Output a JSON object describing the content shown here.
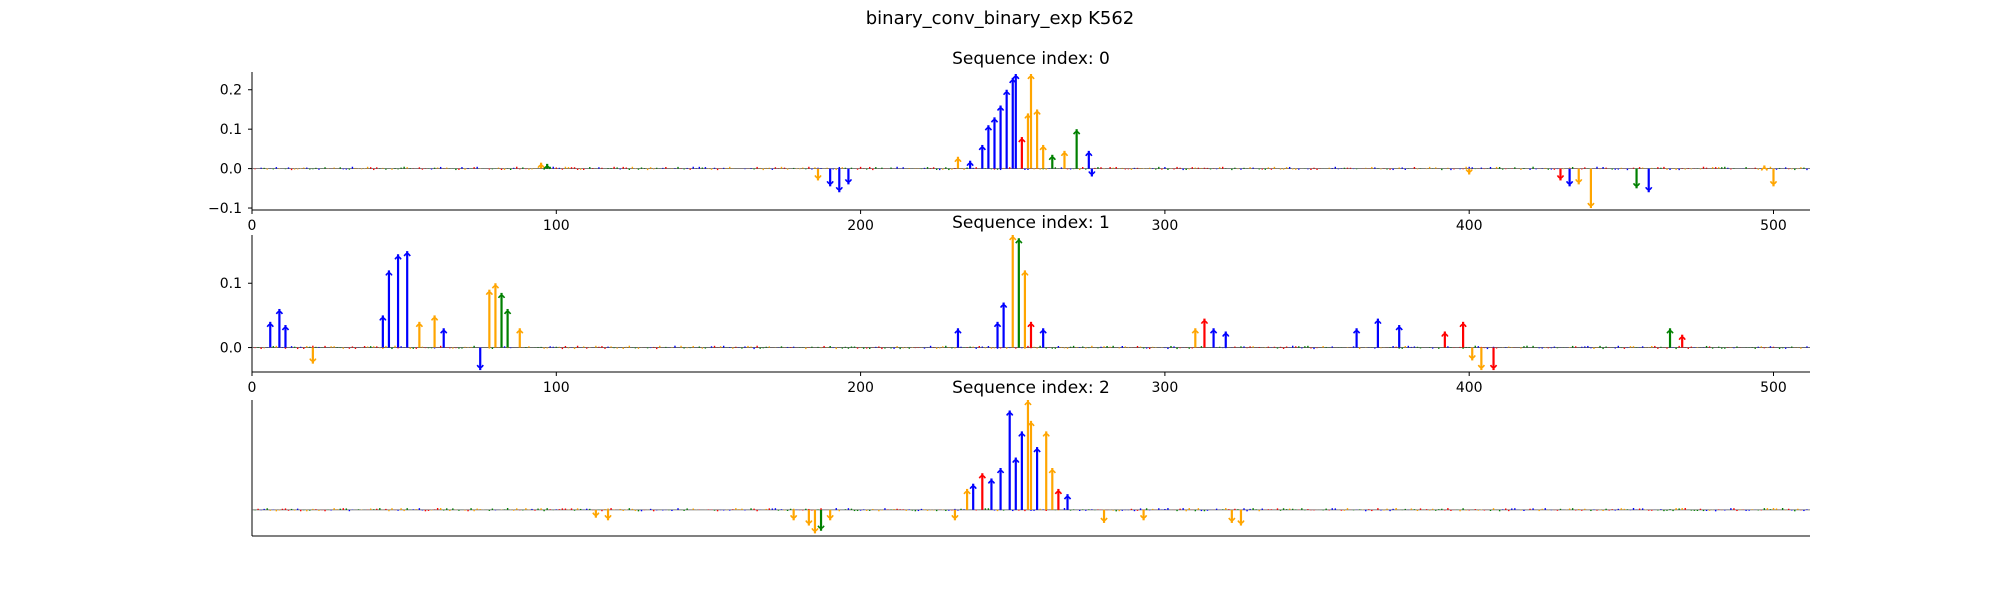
{
  "suptitle": "binary_conv_binary_exp K562",
  "colors": {
    "A": "#008000",
    "C": "#0000ff",
    "G": "#ffa500",
    "T": "#ff0000"
  },
  "chart_data": [
    {
      "type": "line",
      "title": "Sequence index: 0",
      "xlim": [
        0,
        512
      ],
      "ylim": [
        -0.105,
        0.245
      ],
      "xticks": [
        "0",
        "100",
        "200",
        "300",
        "400",
        "500"
      ],
      "xtick_values": [
        0,
        100,
        200,
        300,
        400,
        500
      ],
      "yticks": [
        "−0.1",
        "0.0",
        "0.1",
        "0.2"
      ],
      "ytick_values": [
        -0.1,
        0.0,
        0.1,
        0.2
      ],
      "peaks": [
        {
          "x": 95,
          "v": 0.015,
          "base": "G"
        },
        {
          "x": 97,
          "v": 0.012,
          "base": "A"
        },
        {
          "x": 186,
          "v": -0.03,
          "base": "G"
        },
        {
          "x": 190,
          "v": -0.045,
          "base": "C"
        },
        {
          "x": 193,
          "v": -0.06,
          "base": "C"
        },
        {
          "x": 196,
          "v": -0.04,
          "base": "C"
        },
        {
          "x": 232,
          "v": 0.03,
          "base": "G"
        },
        {
          "x": 236,
          "v": 0.02,
          "base": "C"
        },
        {
          "x": 240,
          "v": 0.06,
          "base": "C"
        },
        {
          "x": 242,
          "v": 0.11,
          "base": "C"
        },
        {
          "x": 244,
          "v": 0.13,
          "base": "C"
        },
        {
          "x": 246,
          "v": 0.16,
          "base": "C"
        },
        {
          "x": 248,
          "v": 0.2,
          "base": "C"
        },
        {
          "x": 250,
          "v": 0.23,
          "base": "C"
        },
        {
          "x": 251,
          "v": 0.24,
          "base": "C"
        },
        {
          "x": 253,
          "v": 0.08,
          "base": "T"
        },
        {
          "x": 255,
          "v": 0.14,
          "base": "G"
        },
        {
          "x": 256,
          "v": 0.24,
          "base": "G"
        },
        {
          "x": 258,
          "v": 0.15,
          "base": "G"
        },
        {
          "x": 260,
          "v": 0.06,
          "base": "G"
        },
        {
          "x": 263,
          "v": 0.035,
          "base": "A"
        },
        {
          "x": 267,
          "v": 0.045,
          "base": "G"
        },
        {
          "x": 271,
          "v": 0.1,
          "base": "A"
        },
        {
          "x": 275,
          "v": 0.045,
          "base": "C"
        },
        {
          "x": 276,
          "v": -0.02,
          "base": "C"
        },
        {
          "x": 400,
          "v": -0.015,
          "base": "G"
        },
        {
          "x": 430,
          "v": -0.03,
          "base": "T"
        },
        {
          "x": 433,
          "v": -0.045,
          "base": "C"
        },
        {
          "x": 436,
          "v": -0.04,
          "base": "G"
        },
        {
          "x": 440,
          "v": -0.1,
          "base": "G"
        },
        {
          "x": 455,
          "v": -0.05,
          "base": "A"
        },
        {
          "x": 459,
          "v": -0.06,
          "base": "C"
        },
        {
          "x": 497,
          "v": 0.008,
          "base": "G"
        },
        {
          "x": 500,
          "v": -0.045,
          "base": "G"
        }
      ]
    },
    {
      "type": "line",
      "title": "Sequence index: 1",
      "xlim": [
        0,
        512
      ],
      "ylim": [
        -0.038,
        0.175
      ],
      "xticks": [
        "0",
        "100",
        "200",
        "300",
        "400",
        "500"
      ],
      "xtick_values": [
        0,
        100,
        200,
        300,
        400,
        500
      ],
      "yticks": [
        "0.0",
        "0.1"
      ],
      "ytick_values": [
        0.0,
        0.1
      ],
      "peaks": [
        {
          "x": 6,
          "v": 0.04,
          "base": "C"
        },
        {
          "x": 9,
          "v": 0.06,
          "base": "C"
        },
        {
          "x": 11,
          "v": 0.035,
          "base": "C"
        },
        {
          "x": 20,
          "v": -0.025,
          "base": "G"
        },
        {
          "x": 43,
          "v": 0.05,
          "base": "C"
        },
        {
          "x": 45,
          "v": 0.12,
          "base": "C"
        },
        {
          "x": 48,
          "v": 0.145,
          "base": "C"
        },
        {
          "x": 51,
          "v": 0.15,
          "base": "C"
        },
        {
          "x": 55,
          "v": 0.04,
          "base": "G"
        },
        {
          "x": 60,
          "v": 0.05,
          "base": "G"
        },
        {
          "x": 63,
          "v": 0.03,
          "base": "C"
        },
        {
          "x": 75,
          "v": -0.035,
          "base": "C"
        },
        {
          "x": 78,
          "v": 0.09,
          "base": "G"
        },
        {
          "x": 80,
          "v": 0.1,
          "base": "G"
        },
        {
          "x": 82,
          "v": 0.085,
          "base": "A"
        },
        {
          "x": 84,
          "v": 0.06,
          "base": "A"
        },
        {
          "x": 88,
          "v": 0.03,
          "base": "G"
        },
        {
          "x": 232,
          "v": 0.03,
          "base": "C"
        },
        {
          "x": 245,
          "v": 0.04,
          "base": "C"
        },
        {
          "x": 247,
          "v": 0.07,
          "base": "C"
        },
        {
          "x": 250,
          "v": 0.175,
          "base": "G"
        },
        {
          "x": 252,
          "v": 0.17,
          "base": "A"
        },
        {
          "x": 254,
          "v": 0.12,
          "base": "G"
        },
        {
          "x": 256,
          "v": 0.04,
          "base": "T"
        },
        {
          "x": 260,
          "v": 0.03,
          "base": "C"
        },
        {
          "x": 310,
          "v": 0.03,
          "base": "G"
        },
        {
          "x": 313,
          "v": 0.045,
          "base": "T"
        },
        {
          "x": 316,
          "v": 0.03,
          "base": "C"
        },
        {
          "x": 320,
          "v": 0.025,
          "base": "C"
        },
        {
          "x": 363,
          "v": 0.03,
          "base": "C"
        },
        {
          "x": 370,
          "v": 0.045,
          "base": "C"
        },
        {
          "x": 377,
          "v": 0.035,
          "base": "C"
        },
        {
          "x": 392,
          "v": 0.025,
          "base": "T"
        },
        {
          "x": 398,
          "v": 0.04,
          "base": "T"
        },
        {
          "x": 401,
          "v": -0.02,
          "base": "G"
        },
        {
          "x": 404,
          "v": -0.035,
          "base": "G"
        },
        {
          "x": 408,
          "v": -0.035,
          "base": "T"
        },
        {
          "x": 466,
          "v": 0.03,
          "base": "A"
        },
        {
          "x": 470,
          "v": 0.02,
          "base": "T"
        }
      ]
    },
    {
      "type": "line",
      "title": "Sequence index: 2",
      "xlim": [
        0,
        512
      ],
      "ylim": [
        -0.05,
        0.21
      ],
      "xticks": [],
      "xtick_values": [],
      "yticks": [],
      "ytick_values": [],
      "peaks": [
        {
          "x": 178,
          "v": -0.02,
          "base": "G"
        },
        {
          "x": 183,
          "v": -0.03,
          "base": "G"
        },
        {
          "x": 185,
          "v": -0.045,
          "base": "G"
        },
        {
          "x": 187,
          "v": -0.04,
          "base": "A"
        },
        {
          "x": 190,
          "v": -0.02,
          "base": "G"
        },
        {
          "x": 113,
          "v": -0.015,
          "base": "G"
        },
        {
          "x": 117,
          "v": -0.02,
          "base": "G"
        },
        {
          "x": 231,
          "v": -0.02,
          "base": "G"
        },
        {
          "x": 235,
          "v": 0.04,
          "base": "G"
        },
        {
          "x": 237,
          "v": 0.05,
          "base": "C"
        },
        {
          "x": 240,
          "v": 0.07,
          "base": "T"
        },
        {
          "x": 243,
          "v": 0.06,
          "base": "C"
        },
        {
          "x": 246,
          "v": 0.08,
          "base": "C"
        },
        {
          "x": 249,
          "v": 0.19,
          "base": "C"
        },
        {
          "x": 251,
          "v": 0.1,
          "base": "C"
        },
        {
          "x": 253,
          "v": 0.15,
          "base": "C"
        },
        {
          "x": 255,
          "v": 0.21,
          "base": "G"
        },
        {
          "x": 256,
          "v": 0.17,
          "base": "G"
        },
        {
          "x": 258,
          "v": 0.12,
          "base": "C"
        },
        {
          "x": 261,
          "v": 0.15,
          "base": "G"
        },
        {
          "x": 263,
          "v": 0.08,
          "base": "G"
        },
        {
          "x": 265,
          "v": 0.04,
          "base": "T"
        },
        {
          "x": 268,
          "v": 0.03,
          "base": "C"
        },
        {
          "x": 280,
          "v": -0.025,
          "base": "G"
        },
        {
          "x": 293,
          "v": -0.02,
          "base": "G"
        },
        {
          "x": 322,
          "v": -0.025,
          "base": "G"
        },
        {
          "x": 325,
          "v": -0.03,
          "base": "G"
        }
      ]
    }
  ]
}
